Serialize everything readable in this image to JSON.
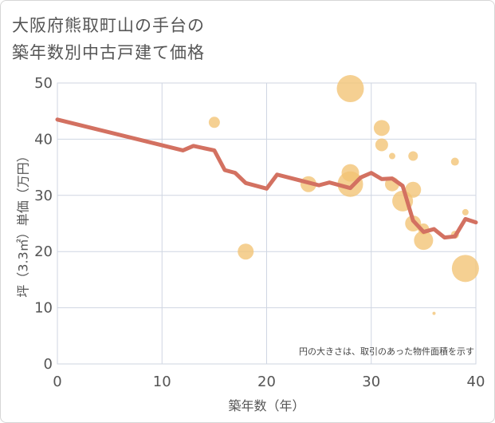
{
  "title_lines": [
    "大阪府熊取町山の手台の",
    "築年数別中古戸建て価格"
  ],
  "chart_data": {
    "type": "scatter",
    "title": "大阪府熊取町山の手台の築年数別中古戸建て価格",
    "xlabel": "築年数（年）",
    "ylabel": "坪（3.3㎡）単価（万円）",
    "xlim": [
      0,
      40
    ],
    "ylim": [
      0,
      50
    ],
    "xticks": [
      0,
      10,
      20,
      30,
      40
    ],
    "yticks": [
      0,
      10,
      20,
      30,
      40,
      50
    ],
    "grid": true,
    "annotation": "円の大きさは、取引のあった物件面積を示す",
    "bubbles": [
      {
        "x": 15,
        "y": 43,
        "size": 7
      },
      {
        "x": 18,
        "y": 20,
        "size": 10
      },
      {
        "x": 24,
        "y": 32,
        "size": 10
      },
      {
        "x": 28,
        "y": 49,
        "size": 17
      },
      {
        "x": 28,
        "y": 34,
        "size": 11
      },
      {
        "x": 28,
        "y": 32,
        "size": 16
      },
      {
        "x": 31,
        "y": 42,
        "size": 10
      },
      {
        "x": 31,
        "y": 39,
        "size": 8
      },
      {
        "x": 32,
        "y": 37,
        "size": 4
      },
      {
        "x": 32,
        "y": 32,
        "size": 9
      },
      {
        "x": 33,
        "y": 29,
        "size": 13
      },
      {
        "x": 34,
        "y": 37,
        "size": 6
      },
      {
        "x": 34,
        "y": 31,
        "size": 10
      },
      {
        "x": 34,
        "y": 25,
        "size": 10
      },
      {
        "x": 35,
        "y": 24,
        "size": 7
      },
      {
        "x": 35,
        "y": 22,
        "size": 12
      },
      {
        "x": 36,
        "y": 9,
        "size": 2
      },
      {
        "x": 38,
        "y": 36,
        "size": 5
      },
      {
        "x": 38,
        "y": 23,
        "size": 5
      },
      {
        "x": 39,
        "y": 27,
        "size": 4
      },
      {
        "x": 39,
        "y": 17,
        "size": 17
      }
    ],
    "trend_line": {
      "x": [
        0,
        12,
        13,
        15,
        16,
        17,
        18,
        20,
        21,
        25,
        26,
        28,
        29,
        30,
        31,
        32,
        33,
        34,
        35,
        36,
        37,
        38,
        39,
        40
      ],
      "y": [
        43.5,
        38,
        38.8,
        38,
        34.5,
        34,
        32.2,
        31.2,
        33.7,
        31.8,
        32.3,
        31.3,
        33.2,
        34,
        32.9,
        33,
        31.7,
        25.5,
        23.5,
        24,
        22.5,
        22.7,
        25.8,
        25.2
      ]
    },
    "bubble_color": "#f2c373",
    "line_color": "#d37161"
  }
}
